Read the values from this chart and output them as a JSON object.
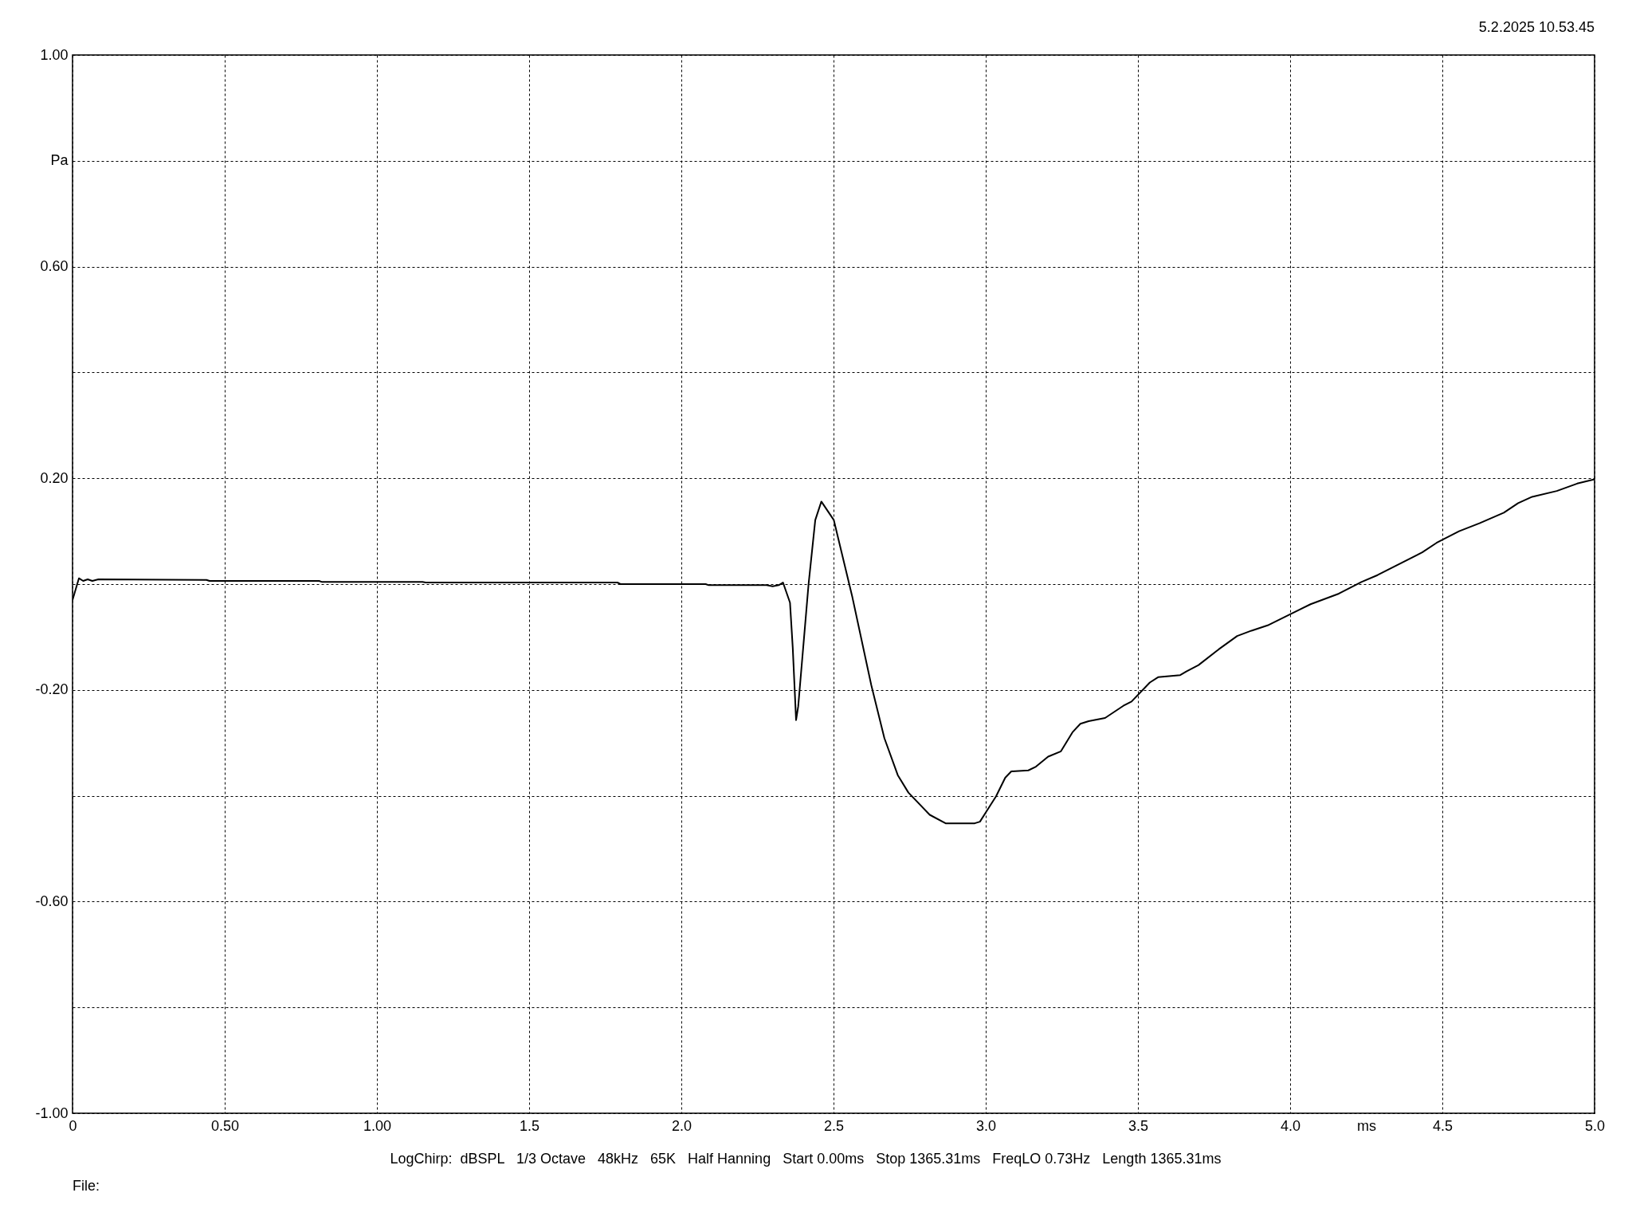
{
  "chart_data": {
    "type": "line",
    "xlabel": "ms",
    "ylabel": "Pa",
    "annotations": [
      "5.2.2025 10.53.45",
      "LogChirp:  dBSPL   1/3 Octave   48kHz   65K   Half Hanning   Start 0.00ms   Stop 1365.31ms   FreqLO 0.73Hz   Length 1365.31ms",
      "File:"
    ],
    "xlim": [
      0,
      5
    ],
    "ylim": [
      -1,
      1
    ],
    "xticks": [
      0,
      {
        "value": 0.5,
        "label": "0.50"
      },
      {
        "value": 1,
        "label": "1.00"
      },
      1.5,
      {
        "value": 2,
        "label": "2.0"
      },
      2.5,
      {
        "value": 3,
        "label": "3.0"
      },
      3.5,
      {
        "value": 4,
        "label": "4.0"
      },
      4.5,
      {
        "value": 5,
        "label": "5.0"
      }
    ],
    "yticks": [
      {
        "value": 1,
        "label": "1.00"
      },
      {
        "value": 0.8,
        "label": null
      },
      {
        "value": 0.6,
        "label": "0.60"
      },
      {
        "value": 0.4,
        "label": null
      },
      {
        "value": 0.2,
        "label": "0.20"
      },
      {
        "value": 0,
        "label": null
      },
      {
        "value": -0.2,
        "label": "-0.20"
      },
      {
        "value": -0.4,
        "label": null
      },
      {
        "value": -0.6,
        "label": "-0.60"
      },
      {
        "value": -0.8,
        "label": null
      },
      {
        "value": -1,
        "label": "-1.00"
      }
    ],
    "grid": true,
    "series": [
      {
        "color": "#000000",
        "x": [
          0,
          0.021,
          0.035,
          0.05,
          0.065,
          0.085,
          0.44,
          0.45,
          0.81,
          0.82,
          1.15,
          1.16,
          1.79,
          1.8,
          2.08,
          2.09,
          2.28,
          2.3,
          2.32,
          2.334,
          2.357,
          2.366,
          2.377,
          2.384,
          2.418,
          2.44,
          2.46,
          2.501,
          2.562,
          2.624,
          2.667,
          2.711,
          2.746,
          2.816,
          2.868,
          2.92,
          2.964,
          2.981,
          3.004,
          3.034,
          3.064,
          3.084,
          3.14,
          3.165,
          3.205,
          3.247,
          3.285,
          3.311,
          3.338,
          3.392,
          3.452,
          3.479,
          3.539,
          3.566,
          3.639,
          3.659,
          3.699,
          3.766,
          3.826,
          3.873,
          3.926,
          4.0,
          4.067,
          4.16,
          4.234,
          4.287,
          4.434,
          4.481,
          4.555,
          4.622,
          4.702,
          4.749,
          4.795,
          4.876,
          4.943,
          5.0
        ],
        "values": [
          -0.03,
          0.011,
          0.006,
          0.009,
          0.006,
          0.009,
          0.008,
          0.006,
          0.006,
          0.004,
          0.004,
          0.003,
          0.003,
          0.0,
          0.0,
          -0.002,
          -0.002,
          -0.004,
          -0.002,
          0.003,
          -0.035,
          -0.12,
          -0.257,
          -0.231,
          0.0,
          0.121,
          0.156,
          0.121,
          -0.025,
          -0.191,
          -0.291,
          -0.361,
          -0.394,
          -0.436,
          -0.452,
          -0.452,
          -0.452,
          -0.449,
          -0.428,
          -0.401,
          -0.366,
          -0.354,
          -0.352,
          -0.345,
          -0.326,
          -0.316,
          -0.28,
          -0.264,
          -0.259,
          -0.253,
          -0.23,
          -0.222,
          -0.186,
          -0.176,
          -0.172,
          -0.165,
          -0.153,
          -0.123,
          -0.098,
          -0.088,
          -0.078,
          -0.057,
          -0.038,
          -0.018,
          0.004,
          0.017,
          0.06,
          0.078,
          0.1,
          0.115,
          0.135,
          0.153,
          0.165,
          0.176,
          0.19,
          0.198
        ]
      }
    ]
  }
}
